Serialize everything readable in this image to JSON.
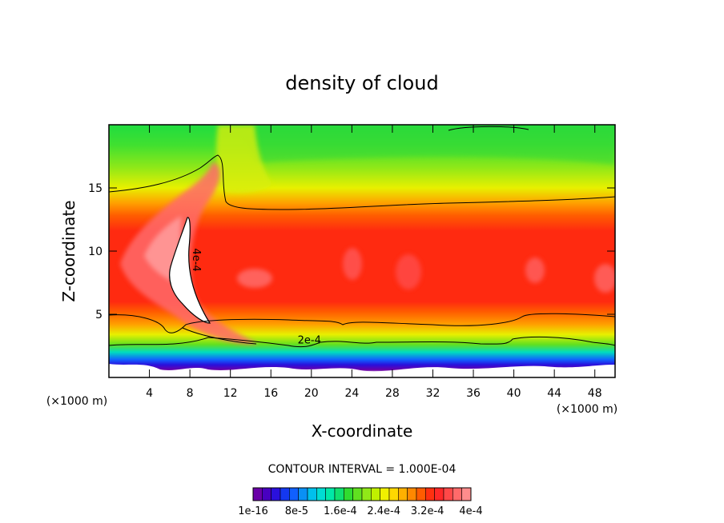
{
  "chart_data": {
    "type": "heatmap",
    "title": "density of cloud",
    "xlabel": "X-coordinate",
    "ylabel": "Z-coordinate",
    "x_unit": "(×1000 m)",
    "y_unit": "(×1000 m)",
    "xlim": [
      0,
      50
    ],
    "ylim": [
      0,
      20
    ],
    "x_ticks": [
      4,
      8,
      12,
      16,
      20,
      24,
      28,
      32,
      36,
      40,
      44,
      48
    ],
    "y_ticks": [
      5,
      10,
      15
    ],
    "contour_interval_text": "CONTOUR INTERVAL = 1.000E-04",
    "contour_labels": [
      {
        "text": "4e-4",
        "x": 8.3,
        "z": 9.3,
        "rotate": 90
      },
      {
        "text": "2e-4",
        "x": 19.8,
        "z": 2.7,
        "rotate": 0
      }
    ],
    "colorbar": {
      "colors": [
        "#6a00a8",
        "#4800c0",
        "#2a10dc",
        "#1438f0",
        "#1060ff",
        "#0a90f4",
        "#00c0ec",
        "#00dcd4",
        "#00e8a8",
        "#10e070",
        "#30dc30",
        "#60e020",
        "#90e818",
        "#c0f000",
        "#f0f000",
        "#ffd800",
        "#ffb000",
        "#ff8800",
        "#ff5c00",
        "#ff3010",
        "#ff2828",
        "#ff4848",
        "#ff6a6a",
        "#ff8c8c"
      ],
      "tick_labels": [
        "1e-16",
        "8e-5",
        "1.6e-4",
        "2.4e-4",
        "3.2e-4",
        "4e-4"
      ]
    }
  }
}
